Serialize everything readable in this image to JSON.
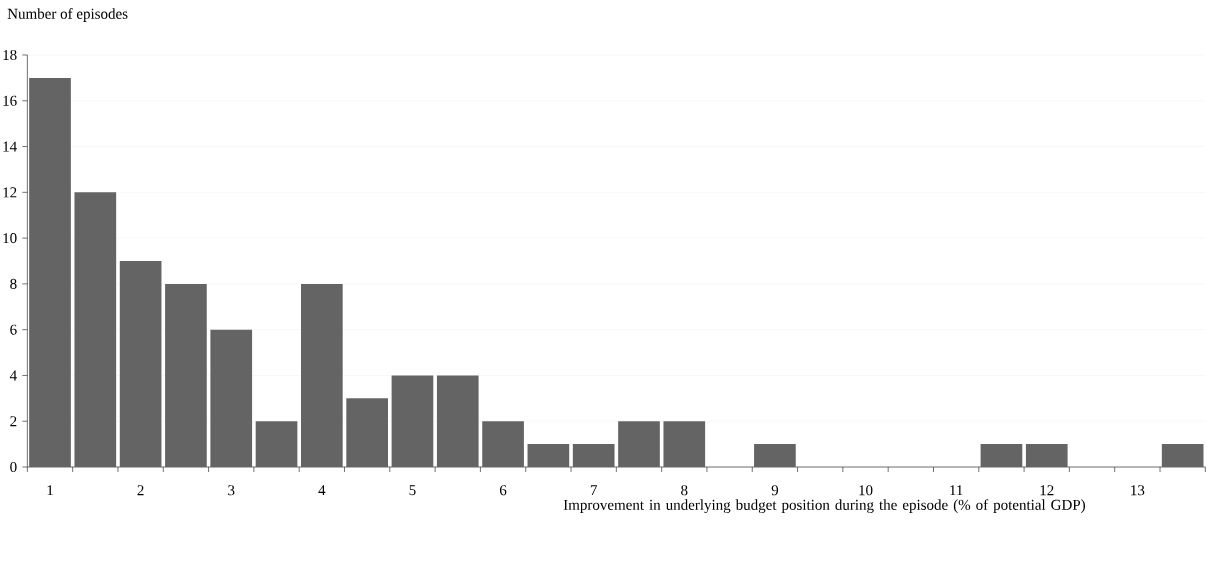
{
  "chart_data": {
    "type": "bar",
    "ylabel": "Number of episodes",
    "xlabel": "Improvement in underlying budget position during the episode (% of potential GDP)",
    "categories": [
      "1",
      null,
      "2",
      null,
      "3",
      null,
      "4",
      null,
      "5",
      null,
      "6",
      null,
      "7",
      null,
      "8",
      null,
      "9",
      null,
      "10",
      null,
      "11",
      null,
      "12",
      null,
      "13",
      null
    ],
    "values": [
      17,
      12,
      9,
      8,
      6,
      2,
      8,
      3,
      4,
      4,
      2,
      1,
      1,
      2,
      2,
      0,
      1,
      0,
      0,
      0,
      0,
      1,
      1,
      0,
      0,
      1
    ],
    "color": "#646464",
    "ylim": [
      0,
      18
    ],
    "yticks": [
      0,
      2,
      4,
      6,
      8,
      10,
      12,
      14,
      16,
      18
    ],
    "grid": "y"
  }
}
